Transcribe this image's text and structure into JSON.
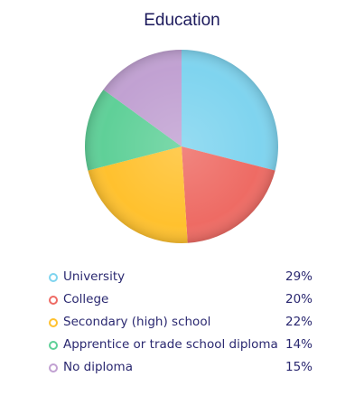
{
  "chart_data": {
    "type": "pie",
    "title": "Education",
    "categories": [
      "University",
      "College",
      "Secondary (high) school",
      "Apprentice or trade school diploma",
      "No diploma"
    ],
    "values": [
      29,
      20,
      22,
      14,
      15
    ],
    "value_labels": [
      "29%",
      "20%",
      "22%",
      "14%",
      "15%"
    ],
    "colors": [
      "#7fd4ef",
      "#ee6b64",
      "#ffc12e",
      "#5fd098",
      "#c1a1d2"
    ],
    "legend_placement": "bottom"
  }
}
